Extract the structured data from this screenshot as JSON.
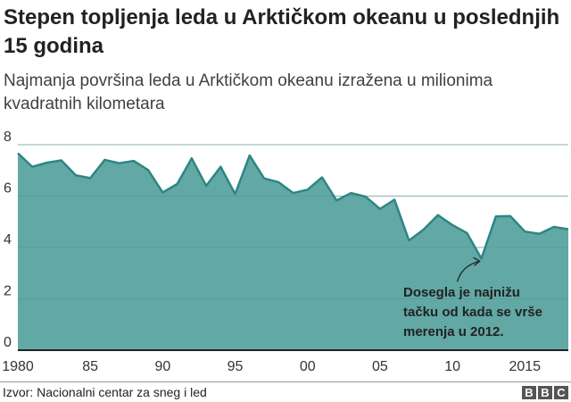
{
  "header": {
    "title": "Stepen topljenja leda u Arktičkom okeanu u poslednjih 15 godina",
    "subtitle": "Najmanja površina leda u Arktičkom okeanu izražena u milionima kvadratnih kilometara"
  },
  "footer": {
    "source": "Izvor: Nacionalni centar za sneg i led",
    "logo": "BBC"
  },
  "colors": {
    "area": "#62a8a5",
    "line": "#2e8683",
    "grid": "#cccccc"
  },
  "chart_data": {
    "type": "area",
    "x": [
      1980,
      1981,
      1982,
      1983,
      1984,
      1985,
      1986,
      1987,
      1988,
      1989,
      1990,
      1991,
      1992,
      1993,
      1994,
      1995,
      1996,
      1997,
      1998,
      1999,
      2000,
      2001,
      2002,
      2003,
      2004,
      2005,
      2006,
      2007,
      2008,
      2009,
      2010,
      2011,
      2012,
      2013,
      2014,
      2015,
      2016,
      2017,
      2018
    ],
    "values": [
      7.67,
      7.14,
      7.3,
      7.39,
      6.81,
      6.7,
      7.41,
      7.28,
      7.37,
      7.01,
      6.14,
      6.47,
      7.47,
      6.4,
      7.14,
      6.08,
      7.58,
      6.69,
      6.54,
      6.12,
      6.25,
      6.73,
      5.83,
      6.12,
      5.98,
      5.5,
      5.86,
      4.27,
      4.69,
      5.26,
      4.87,
      4.56,
      3.57,
      5.21,
      5.22,
      4.62,
      4.53,
      4.8,
      4.71
    ],
    "ylim": [
      0,
      8
    ],
    "yticks": [
      0,
      2,
      4,
      6,
      8
    ],
    "xticks": [
      {
        "v": 1980,
        "label": "1980"
      },
      {
        "v": 1985,
        "label": "85"
      },
      {
        "v": 1990,
        "label": "90"
      },
      {
        "v": 1995,
        "label": "95"
      },
      {
        "v": 2000,
        "label": "00"
      },
      {
        "v": 2005,
        "label": "05"
      },
      {
        "v": 2010,
        "label": "10"
      },
      {
        "v": 2015,
        "label": "2015"
      }
    ],
    "grid": true,
    "annotation": {
      "x": 2012,
      "y": 3.57,
      "lines": [
        "Dosegla je najnižu",
        "tačku od kada se vrše",
        "merenja u 2012."
      ]
    }
  }
}
